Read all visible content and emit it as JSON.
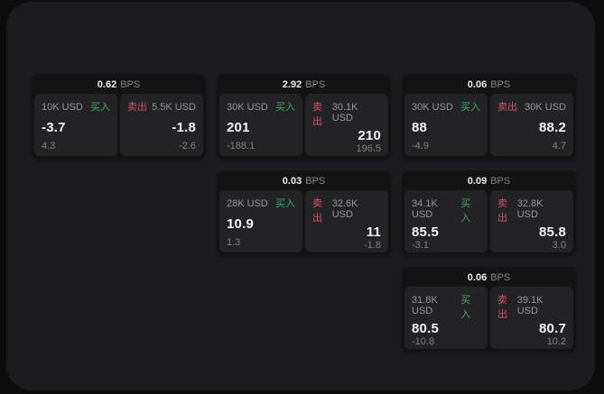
{
  "labels": {
    "buy": "买入",
    "sell": "卖出",
    "bps_unit": "BPS"
  },
  "colors": {
    "buy_green": "#40a871",
    "sell_red": "#cf5268",
    "panel": "#1c1c1e",
    "card": "#131314",
    "subpanel": "#232325"
  },
  "cards": [
    {
      "bps": "0.62",
      "buy": {
        "amount": "10K USD",
        "value": "-3.7",
        "sub": "4.3"
      },
      "sell": {
        "amount": "5.5K USD",
        "value": "-1.8",
        "sub": "-2.6"
      }
    },
    {
      "bps": "2.92",
      "buy": {
        "amount": "30K USD",
        "value": "201",
        "sub": "-188.1"
      },
      "sell": {
        "amount": "30.1K USD",
        "value": "210",
        "sub": "196.5"
      }
    },
    {
      "bps": "0.06",
      "buy": {
        "amount": "30K USD",
        "value": "88",
        "sub": "-4.9"
      },
      "sell": {
        "amount": "30K USD",
        "value": "88.2",
        "sub": "4.7"
      }
    },
    {
      "bps": "0.03",
      "buy": {
        "amount": "28K USD",
        "value": "10.9",
        "sub": "1.3"
      },
      "sell": {
        "amount": "32.6K USD",
        "value": "11",
        "sub": "-1.8"
      }
    },
    {
      "bps": "0.09",
      "buy": {
        "amount": "34.1K USD",
        "value": "85.5",
        "sub": "-3.1"
      },
      "sell": {
        "amount": "32.8K USD",
        "value": "85.8",
        "sub": "3.0"
      }
    },
    {
      "bps": "0.06",
      "buy": {
        "amount": "31.8K USD",
        "value": "80.5",
        "sub": "-10.8"
      },
      "sell": {
        "amount": "39.1K USD",
        "value": "80.7",
        "sub": "10.2"
      }
    }
  ]
}
